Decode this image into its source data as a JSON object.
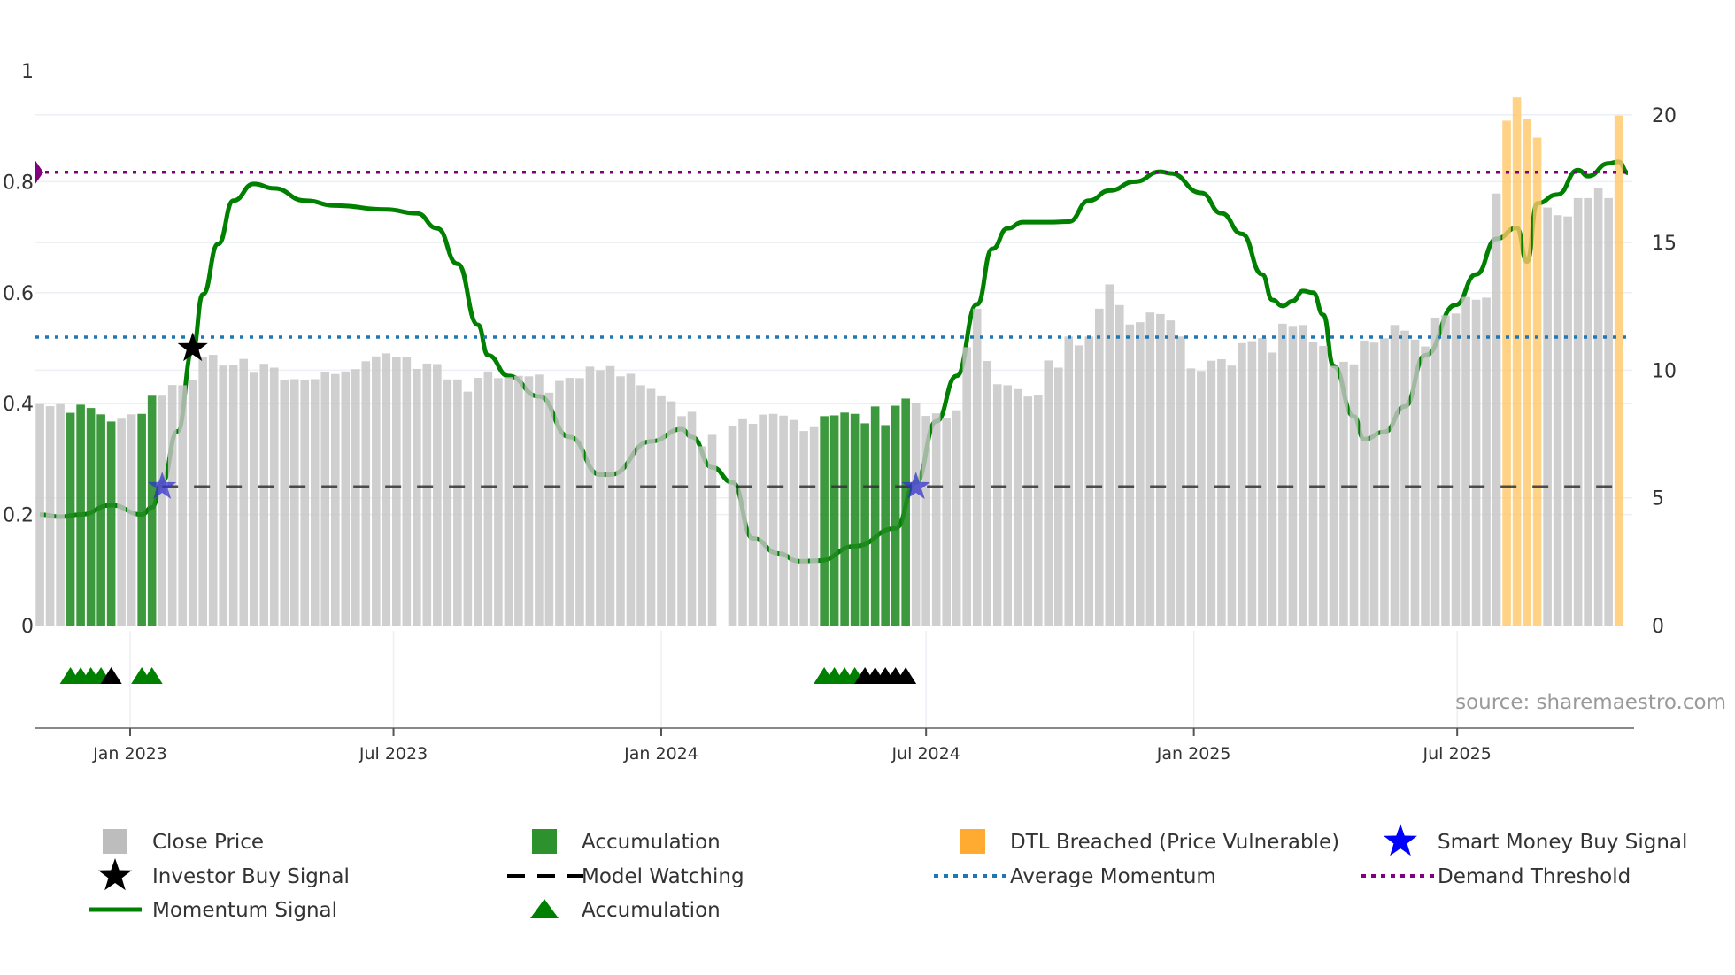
{
  "chart_data": {
    "type": "bar",
    "title": "",
    "x_start": "2022-10-31",
    "x_step_days": 7,
    "price_axis": {
      "ticks": [
        0,
        5,
        10,
        15,
        20
      ],
      "labels": [
        "0",
        "5",
        "10",
        "15",
        "20"
      ],
      "side": "right"
    },
    "momentum_axis": {
      "ticks": [
        0,
        0.2,
        0.4,
        0.6,
        0.8,
        1
      ],
      "labels": [
        "0",
        "0.2",
        "0.4",
        "0.6",
        "0.8",
        "1"
      ],
      "side": "left",
      "ylim": [
        0,
        1
      ]
    },
    "x_ticks": [
      {
        "date": "2023-01-01",
        "label": "Jan 2023"
      },
      {
        "date": "2023-07-01",
        "label": "Jul 2023"
      },
      {
        "date": "2024-01-01",
        "label": "Jan 2024"
      },
      {
        "date": "2024-07-01",
        "label": "Jul 2024"
      },
      {
        "date": "2025-01-01",
        "label": "Jan 2025"
      },
      {
        "date": "2025-07-01",
        "label": "Jul 2025"
      }
    ],
    "close_price": [
      8.67,
      8.59,
      8.67,
      8.33,
      8.65,
      8.52,
      8.27,
      7.99,
      8.1,
      8.27,
      8.29,
      9.0,
      9.0,
      9.42,
      9.41,
      9.62,
      10.52,
      10.6,
      10.18,
      10.2,
      10.44,
      9.9,
      10.25,
      10.1,
      9.6,
      9.65,
      9.6,
      9.65,
      9.92,
      9.85,
      9.95,
      10.04,
      10.35,
      10.54,
      10.66,
      10.5,
      10.5,
      10.05,
      10.26,
      10.24,
      9.64,
      9.64,
      9.16,
      9.7,
      9.95,
      9.69,
      9.73,
      9.78,
      9.76,
      9.83,
      9.12,
      9.58,
      9.7,
      9.69,
      10.14,
      10.0,
      10.16,
      9.76,
      9.86,
      9.41,
      9.27,
      8.98,
      8.78,
      8.2,
      8.37,
      7.02,
      7.47,
      null,
      7.82,
      8.08,
      7.9,
      8.26,
      8.29,
      8.22,
      8.05,
      7.62,
      7.77,
      8.2,
      8.23,
      8.34,
      8.29,
      7.92,
      8.58,
      7.85,
      8.61,
      8.89,
      8.71,
      8.21,
      8.31,
      8.13,
      8.43,
      10.9,
      12.41,
      10.36,
      9.45,
      9.41,
      9.26,
      8.97,
      9.03,
      10.38,
      10.1,
      11.32,
      10.97,
      11.32,
      12.41,
      13.36,
      12.55,
      11.79,
      11.88,
      12.26,
      12.2,
      11.95,
      11.32,
      10.07,
      9.97,
      10.37,
      10.43,
      10.18,
      11.06,
      11.14,
      11.26,
      10.69,
      11.82,
      11.7,
      11.77,
      11.11,
      10.95,
      10.17,
      10.33,
      10.23,
      11.16,
      11.08,
      11.25,
      11.77,
      11.55,
      11.2,
      10.93,
      12.06,
      12.15,
      12.22,
      12.87,
      12.76,
      12.84,
      16.92,
      19.77,
      20.68,
      19.83,
      19.11,
      16.37,
      16.07,
      16.02,
      16.74,
      16.74,
      17.15,
      16.74,
      19.97
    ],
    "accumulation_weeks": [
      4,
      5,
      6,
      7,
      8,
      11,
      12,
      78,
      79,
      80,
      81,
      82,
      83,
      84,
      85,
      86
    ],
    "dtl_breached_weeks": [
      145,
      146,
      147,
      148,
      156
    ],
    "momentum_signal": [
      [
        1,
        0.2
      ],
      [
        3,
        0.196
      ],
      [
        5,
        0.2
      ],
      [
        8,
        0.217
      ],
      [
        11,
        0.2
      ],
      [
        12,
        0.213
      ],
      [
        13,
        0.258
      ],
      [
        14.5,
        0.35
      ],
      [
        16,
        0.496
      ],
      [
        17,
        0.597
      ],
      [
        18.5,
        0.688
      ],
      [
        20,
        0.766
      ],
      [
        22,
        0.796
      ],
      [
        24,
        0.788
      ],
      [
        27,
        0.766
      ],
      [
        30,
        0.757
      ],
      [
        35,
        0.75
      ],
      [
        38,
        0.743
      ],
      [
        40,
        0.716
      ],
      [
        42,
        0.652
      ],
      [
        44,
        0.542
      ],
      [
        45,
        0.487
      ],
      [
        47,
        0.45
      ],
      [
        50,
        0.413
      ],
      [
        53,
        0.34
      ],
      [
        56,
        0.272
      ],
      [
        57,
        0.272
      ],
      [
        61,
        0.332
      ],
      [
        64,
        0.354
      ],
      [
        65,
        0.34
      ],
      [
        67,
        0.285
      ],
      [
        69,
        0.258
      ],
      [
        71,
        0.157
      ],
      [
        73.5,
        0.13
      ],
      [
        75.5,
        0.116
      ],
      [
        77.5,
        0.117
      ],
      [
        81,
        0.143
      ],
      [
        85,
        0.175
      ],
      [
        87,
        0.258
      ],
      [
        89,
        0.368
      ],
      [
        91,
        0.45
      ],
      [
        93,
        0.579
      ],
      [
        94.5,
        0.679
      ],
      [
        96,
        0.716
      ],
      [
        97.5,
        0.727
      ],
      [
        100,
        0.727
      ],
      [
        102,
        0.728
      ],
      [
        104,
        0.766
      ],
      [
        106,
        0.784
      ],
      [
        108.5,
        0.8
      ],
      [
        111,
        0.818
      ],
      [
        112,
        0.815
      ],
      [
        115,
        0.78
      ],
      [
        117,
        0.743
      ],
      [
        119,
        0.706
      ],
      [
        121,
        0.633
      ],
      [
        122,
        0.587
      ],
      [
        123,
        0.576
      ],
      [
        124,
        0.585
      ],
      [
        125,
        0.603
      ],
      [
        126,
        0.6
      ],
      [
        127,
        0.56
      ],
      [
        128,
        0.468
      ],
      [
        130,
        0.377
      ],
      [
        131,
        0.336
      ],
      [
        133,
        0.349
      ],
      [
        135,
        0.395
      ],
      [
        137,
        0.487
      ],
      [
        140,
        0.578
      ],
      [
        142,
        0.633
      ],
      [
        144,
        0.697
      ],
      [
        146,
        0.717
      ],
      [
        147,
        0.656
      ],
      [
        148,
        0.761
      ],
      [
        150,
        0.777
      ],
      [
        152,
        0.821
      ],
      [
        153,
        0.81
      ],
      [
        155,
        0.833
      ],
      [
        156,
        0.836
      ],
      [
        156.9,
        0.816
      ]
    ],
    "average_momentum": 0.52,
    "demand_threshold": 0.817,
    "model_watching": {
      "value": 0.25,
      "from_week": 13,
      "to_week": 156
    },
    "investor_buy_signals": [
      {
        "week": 16,
        "value": 0.5
      }
    ],
    "smart_money_buy_signals": [
      {
        "week": 13,
        "value": 0.25
      },
      {
        "week": 87,
        "value": 0.25
      }
    ],
    "accumulation_markers": [
      {
        "week": 4,
        "kind": "accumulation"
      },
      {
        "week": 5,
        "kind": "accumulation"
      },
      {
        "week": 6,
        "kind": "accumulation"
      },
      {
        "week": 7,
        "kind": "accumulation"
      },
      {
        "week": 8,
        "kind": "watching"
      },
      {
        "week": 11,
        "kind": "accumulation"
      },
      {
        "week": 12,
        "kind": "accumulation"
      },
      {
        "week": 78,
        "kind": "accumulation"
      },
      {
        "week": 79,
        "kind": "accumulation"
      },
      {
        "week": 80,
        "kind": "accumulation"
      },
      {
        "week": 81,
        "kind": "accumulation"
      },
      {
        "week": 82,
        "kind": "watching"
      },
      {
        "week": 83,
        "kind": "watching"
      },
      {
        "week": 84,
        "kind": "watching"
      },
      {
        "week": 85,
        "kind": "watching"
      },
      {
        "week": 86,
        "kind": "watching"
      }
    ],
    "legend": [
      {
        "label": "Close Price",
        "symbol": "square",
        "color": "#bdbdbd"
      },
      {
        "label": "Accumulation",
        "symbol": "square",
        "color": "#228b22"
      },
      {
        "label": "DTL Breached (Price Vulnerable)",
        "symbol": "square",
        "color": "#ffa726"
      },
      {
        "label": "Smart Money Buy Signal",
        "symbol": "star",
        "color": "#0000ff"
      },
      {
        "label": "Investor Buy Signal",
        "symbol": "star",
        "color": "#000000"
      },
      {
        "label": "Model Watching",
        "symbol": "dash",
        "color": "#000000"
      },
      {
        "label": "Average Momentum",
        "symbol": "dot",
        "color": "#1f77b4"
      },
      {
        "label": "Demand Threshold",
        "symbol": "dot",
        "color": "#800080"
      },
      {
        "label": "Momentum Signal",
        "symbol": "line",
        "color": "#008000"
      },
      {
        "label": "Accumulation",
        "symbol": "triangle",
        "color": "#008000"
      }
    ],
    "legend_placement": "bottom",
    "grid": true
  },
  "source_note": "source: sharemaestro.com",
  "colors": {
    "price": "#c4c4c4",
    "accumulation": "#228b22",
    "dtl": "#ffc766",
    "momentum": "#008000",
    "avg": "#1f77b4",
    "demand": "#800080",
    "smart": "#3333cc"
  }
}
